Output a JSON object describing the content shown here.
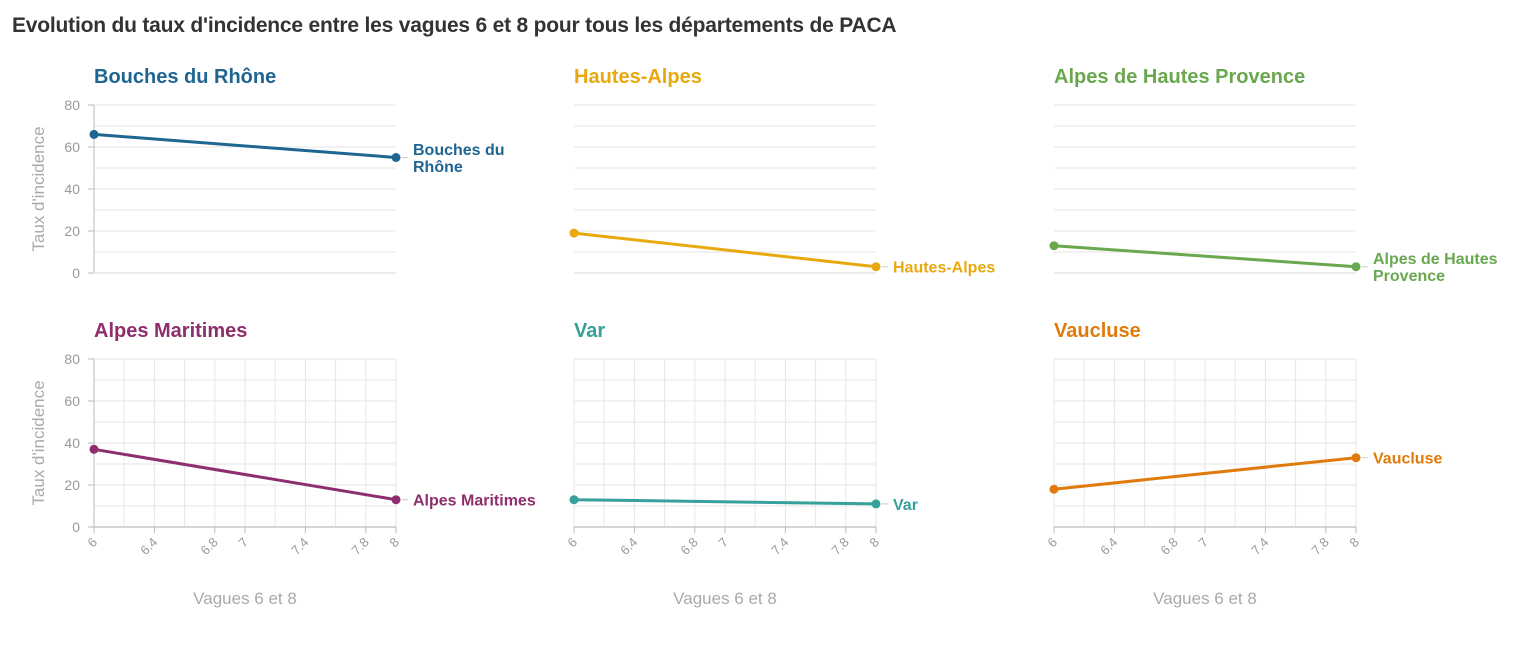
{
  "title": "Evolution du taux d'incidence entre les vagues 6 et 8 pour tous les départements de PACA",
  "colors": {
    "grid": "#e6e6e6",
    "axis": "#bbbbbb",
    "tick_text": "#999999",
    "axis_title": "#aaaaaa"
  },
  "chart_data": [
    {
      "type": "line",
      "title": "Bouches du Rhône",
      "color": "#1f6591",
      "x": [
        6,
        8
      ],
      "series": [
        {
          "name": "Bouches du Rhône",
          "label_lines": [
            "Bouches du",
            "Rhône"
          ],
          "values": [
            66,
            55
          ]
        }
      ],
      "ylabel": "Taux d'incidence",
      "xlabel": "",
      "yticks": [
        0,
        20,
        40,
        60,
        80
      ],
      "ylim": [
        0,
        80
      ],
      "xlim": [
        6,
        8
      ],
      "xticks": [],
      "grid": true
    },
    {
      "type": "line",
      "title": "Hautes-Alpes",
      "color": "#e8a90f",
      "x": [
        6,
        8
      ],
      "series": [
        {
          "name": "Hautes-Alpes",
          "label_lines": [
            "Hautes-Alpes"
          ],
          "values": [
            19,
            3
          ]
        }
      ],
      "ylabel": "",
      "xlabel": "",
      "yticks": [],
      "ylim": [
        0,
        80
      ],
      "xlim": [
        6,
        8
      ],
      "xticks": [],
      "grid": true
    },
    {
      "type": "line",
      "title": "Alpes de Hautes Provence",
      "color": "#6aa84f",
      "x": [
        6,
        8
      ],
      "series": [
        {
          "name": "Alpes de Hautes Provence",
          "label_lines": [
            "Alpes de Hautes",
            "Provence"
          ],
          "values": [
            13,
            3
          ]
        }
      ],
      "ylabel": "",
      "xlabel": "",
      "yticks": [],
      "ylim": [
        0,
        80
      ],
      "xlim": [
        6,
        8
      ],
      "xticks": [],
      "grid": true
    },
    {
      "type": "line",
      "title": "Alpes Maritimes",
      "color": "#8e2f6d",
      "x": [
        6,
        8
      ],
      "series": [
        {
          "name": "Alpes Maritimes",
          "label_lines": [
            "Alpes Maritimes"
          ],
          "values": [
            37,
            13
          ]
        }
      ],
      "ylabel": "Taux d'incidence",
      "xlabel": "Vagues 6 et 8",
      "yticks": [
        0,
        20,
        40,
        60,
        80
      ],
      "ylim": [
        0,
        80
      ],
      "xlim": [
        6,
        8
      ],
      "xticks": [
        6,
        6.4,
        6.8,
        7,
        7.4,
        7.8,
        8
      ],
      "grid": true
    },
    {
      "type": "line",
      "title": "Var",
      "color": "#36a09b",
      "x": [
        6,
        8
      ],
      "series": [
        {
          "name": "Var",
          "label_lines": [
            "Var"
          ],
          "values": [
            13,
            11
          ]
        }
      ],
      "ylabel": "",
      "xlabel": "Vagues 6 et 8",
      "yticks": [],
      "ylim": [
        0,
        80
      ],
      "xlim": [
        6,
        8
      ],
      "xticks": [
        6,
        6.4,
        6.8,
        7,
        7.4,
        7.8,
        8
      ],
      "grid": true
    },
    {
      "type": "line",
      "title": "Vaucluse",
      "color": "#e07b0b",
      "x": [
        6,
        8
      ],
      "series": [
        {
          "name": "Vaucluse",
          "label_lines": [
            "Vaucluse"
          ],
          "values": [
            18,
            33
          ]
        }
      ],
      "ylabel": "",
      "xlabel": "Vagues 6 et 8",
      "yticks": [],
      "ylim": [
        0,
        80
      ],
      "xlim": [
        6,
        8
      ],
      "xticks": [
        6,
        6.4,
        6.8,
        7,
        7.4,
        7.8,
        8
      ],
      "grid": true
    }
  ]
}
